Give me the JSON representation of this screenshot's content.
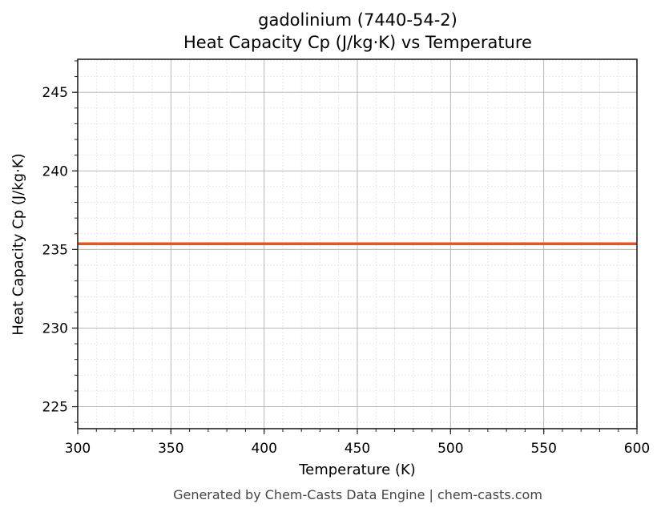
{
  "chart_data": {
    "type": "line",
    "title": "gadolinium (7440-54-2)",
    "subtitle": "Heat Capacity Cp (J/kg·K) vs Temperature",
    "xlabel": "Temperature (K)",
    "ylabel": "Heat Capacity Cp (J/kg·K)",
    "xlim": [
      300,
      600
    ],
    "ylim": [
      223.6,
      247.1
    ],
    "xticks": [
      300,
      350,
      400,
      450,
      500,
      550,
      600
    ],
    "yticks": [
      225,
      230,
      235,
      240,
      245
    ],
    "grid": true,
    "minor_grid": true,
    "legend": null,
    "series": [
      {
        "name": "Cp",
        "color": "#d95a28",
        "x": [
          300,
          350,
          400,
          450,
          500,
          550,
          600
        ],
        "y": [
          235.36,
          235.36,
          235.36,
          235.36,
          235.36,
          235.36,
          235.36
        ]
      }
    ]
  },
  "header": {
    "title_line1": "gadolinium (7440-54-2)",
    "title_line2": "Heat Capacity Cp (J/kg·K) vs Temperature"
  },
  "axes": {
    "xlabel": "Temperature (K)",
    "ylabel": "Heat Capacity Cp (J/kg·K)"
  },
  "footer": {
    "text": "Generated by Chem-Casts Data Engine | chem-casts.com"
  }
}
